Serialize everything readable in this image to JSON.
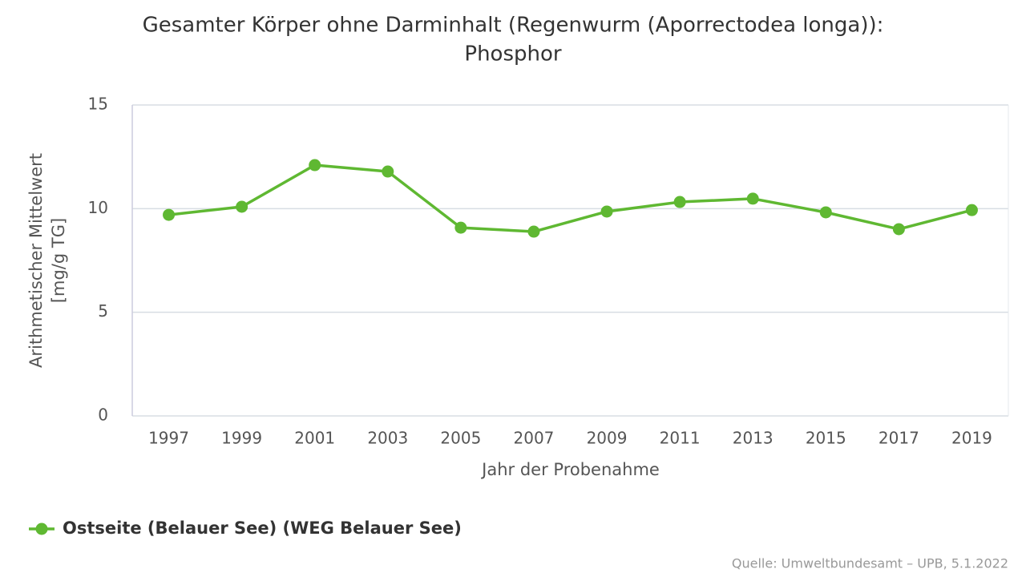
{
  "chart_data": {
    "type": "line",
    "title": [
      "Gesamter Körper ohne Darminhalt (Regenwurm (Aporrectodea longa)):",
      "Phosphor"
    ],
    "x_label": "Jahr der Probenahme",
    "y_label": [
      "Arithmetischer Mittelwert",
      "[mg/g TG]"
    ],
    "categories": [
      "1997",
      "1999",
      "2001",
      "2003",
      "2005",
      "2007",
      "2009",
      "2011",
      "2013",
      "2015",
      "2017",
      "2019"
    ],
    "series": [
      {
        "name": "Ostseite (Belauer See) (WEG Belauer See)",
        "color": "#5fb832",
        "values": [
          9.7,
          10.09,
          12.1,
          11.79,
          9.08,
          8.89,
          9.86,
          10.32,
          10.48,
          9.82,
          9.01,
          9.93
        ]
      }
    ],
    "ylim": [
      0,
      15
    ],
    "yticks": [
      0,
      5,
      10,
      15
    ],
    "grid": true,
    "legend": "bottom-left",
    "source": "Quelle: Umweltbundesamt – UPB, 5.1.2022"
  }
}
